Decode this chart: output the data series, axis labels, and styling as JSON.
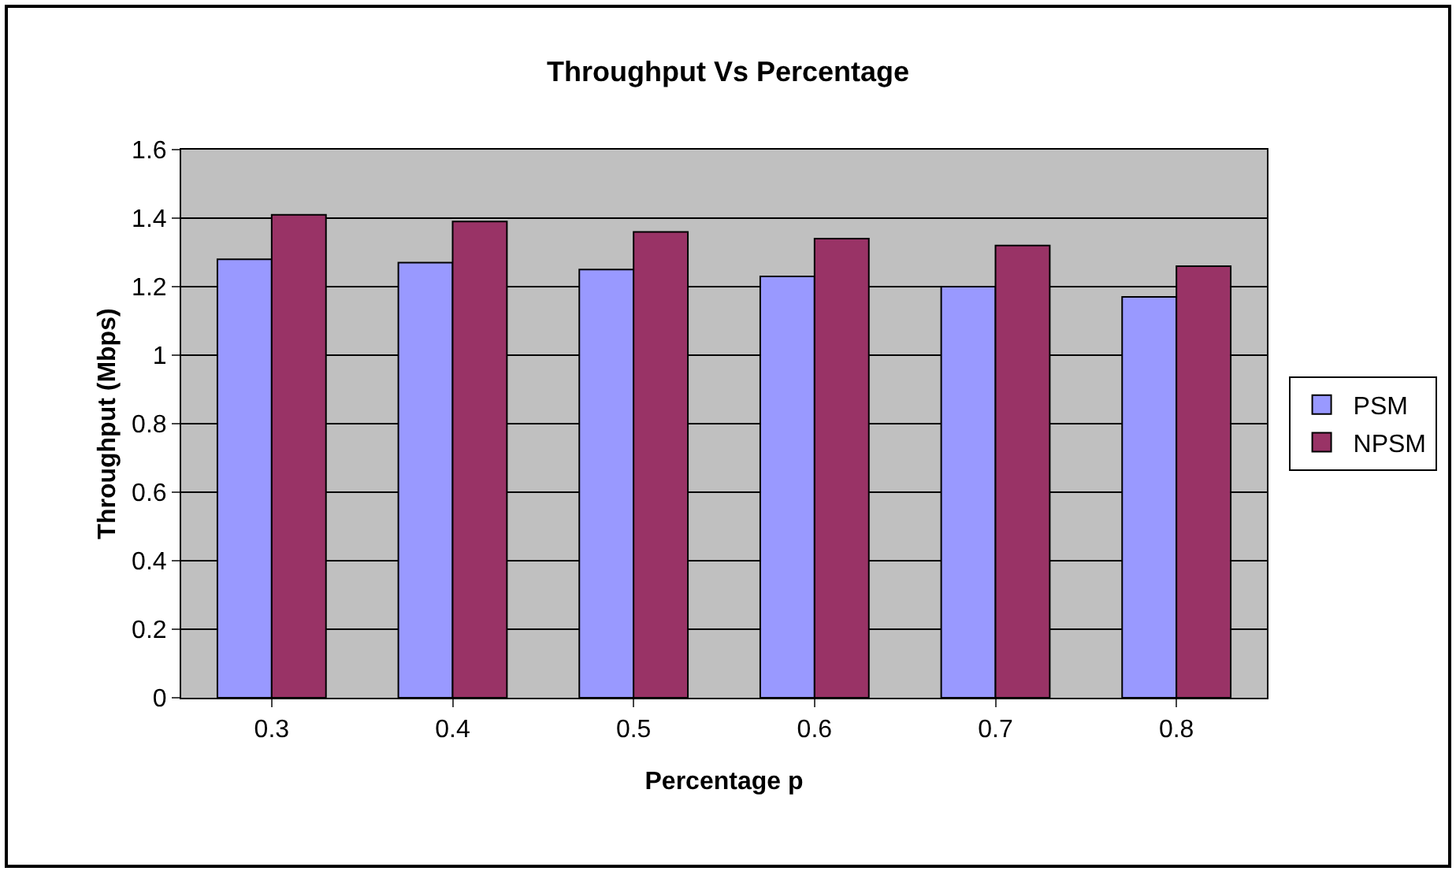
{
  "chart_data": {
    "type": "bar",
    "title": "Throughput Vs Percentage",
    "xlabel": "Percentage p",
    "ylabel": "Throughput (Mbps)",
    "categories": [
      "0.3",
      "0.4",
      "0.5",
      "0.6",
      "0.7",
      "0.8"
    ],
    "series": [
      {
        "name": "PSM",
        "color": "#9999ff",
        "values": [
          1.28,
          1.27,
          1.25,
          1.23,
          1.2,
          1.17
        ]
      },
      {
        "name": "NPSM",
        "color": "#993366",
        "values": [
          1.41,
          1.39,
          1.36,
          1.34,
          1.32,
          1.26
        ]
      }
    ],
    "ylim": [
      0,
      1.6
    ],
    "yticks": [
      0,
      0.2,
      0.4,
      0.6,
      0.8,
      1,
      1.2,
      1.4,
      1.6
    ],
    "grid": "y",
    "legend": "right"
  }
}
